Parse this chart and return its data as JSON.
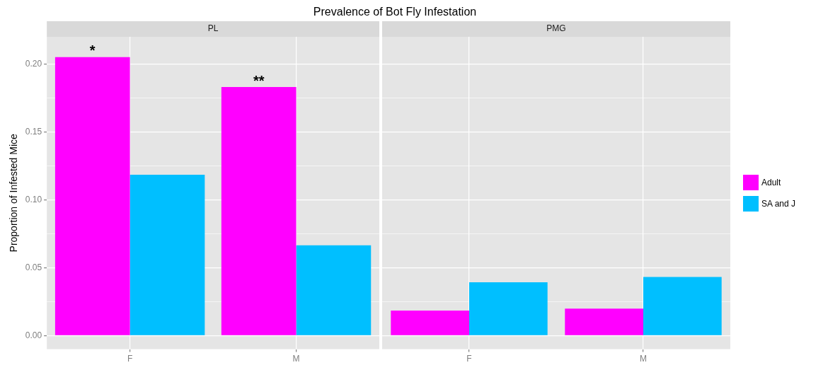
{
  "chart_data": [
    {
      "type": "bar",
      "title": "Prevalence of Bot Fly Infestation",
      "subtitle": "PL",
      "ylabel": "Proportion of Infested Mice",
      "categories": [
        "F",
        "M"
      ],
      "series": [
        {
          "color": "#ff00ff",
          "values": [
            0.205,
            0.183
          ]
        },
        {
          "color": "#00bfff",
          "values": [
            0.1185,
            0.0665
          ]
        }
      ],
      "ylim": [
        -0.01,
        0.22
      ],
      "yticks": [
        {
          "value": 0,
          "label": "0.00"
        },
        {
          "value": 0.025,
          "label": null
        },
        {
          "value": 0.05,
          "label": "0.05"
        },
        {
          "value": 0.075,
          "label": null
        },
        {
          "value": 0.1,
          "label": "0.10"
        },
        {
          "value": 0.125,
          "label": null
        },
        {
          "value": 0.15,
          "label": "0.15"
        },
        {
          "value": 0.175,
          "label": null
        },
        {
          "value": 0.2,
          "label": "0.20"
        }
      ],
      "annotations": [
        {
          "text": "*",
          "x": "F",
          "y": 0.205
        },
        {
          "text": "**",
          "x": "M",
          "y": 0.183
        }
      ],
      "grid": true
    },
    {
      "type": "bar",
      "subtitle": "PMG",
      "categories": [
        "F",
        "M"
      ],
      "series": [
        {
          "name": "Adult",
          "color": "#ff00ff",
          "values": [
            0.0184,
            0.0199
          ]
        },
        {
          "name": "SA and J",
          "color": "#00bfff",
          "values": [
            0.0393,
            0.0432
          ]
        }
      ],
      "ylim": [
        -0.01,
        0.22
      ],
      "yticks": [
        0,
        0.025,
        0.05,
        0.075,
        0.1,
        0.125,
        0.15,
        0.175,
        0.2
      ],
      "tick_labels": "x",
      "grid": true,
      "legend": "right"
    }
  ]
}
